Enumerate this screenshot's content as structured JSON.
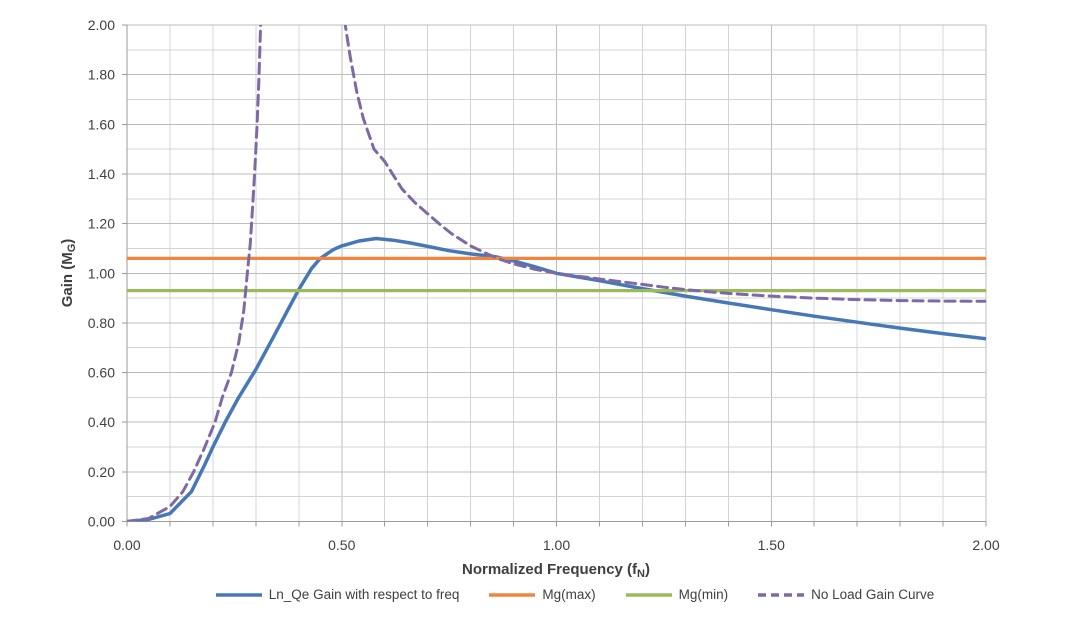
{
  "chart_data": {
    "type": "line",
    "xlabel": {
      "pre": "Normalized Frequency (f",
      "sub": "N",
      "post": ")"
    },
    "ylabel": {
      "pre": "Gain (M",
      "sub": "G",
      "post": ")"
    },
    "x_range": [
      0.0,
      2.0
    ],
    "y_range": [
      0.0,
      2.0
    ],
    "x_minor_step": 0.1,
    "y_minor_step": 0.1,
    "x_major_step": 0.5,
    "y_major_step": 0.2,
    "x_tick_labels": [
      "0.00",
      "0.50",
      "1.00",
      "1.50",
      "2.00"
    ],
    "y_tick_labels": [
      "0.00",
      "0.20",
      "0.40",
      "0.60",
      "0.80",
      "1.00",
      "1.20",
      "1.40",
      "1.60",
      "1.80",
      "2.00"
    ],
    "grid": true,
    "legend_position": "bottom",
    "series": [
      {
        "name": "Ln_Qe Gain with respect to freq",
        "color": "#4678B8",
        "dash": null,
        "width": 3.5,
        "segments": [
          [
            [
              0.0,
              0.0
            ],
            [
              0.05,
              0.008
            ],
            [
              0.1,
              0.032
            ],
            [
              0.15,
              0.12
            ],
            [
              0.18,
              0.225
            ],
            [
              0.2,
              0.3
            ],
            [
              0.23,
              0.405
            ],
            [
              0.26,
              0.5
            ],
            [
              0.3,
              0.612
            ],
            [
              0.34,
              0.74
            ],
            [
              0.38,
              0.87
            ],
            [
              0.4,
              0.935
            ],
            [
              0.43,
              1.02
            ],
            [
              0.45,
              1.06
            ],
            [
              0.48,
              1.095
            ],
            [
              0.5,
              1.11
            ],
            [
              0.54,
              1.13
            ],
            [
              0.58,
              1.14
            ],
            [
              0.62,
              1.133
            ],
            [
              0.66,
              1.122
            ],
            [
              0.7,
              1.108
            ],
            [
              0.75,
              1.091
            ],
            [
              0.8,
              1.078
            ],
            [
              0.86,
              1.066
            ],
            [
              0.9,
              1.05
            ],
            [
              0.95,
              1.026
            ],
            [
              1.0,
              1.0
            ],
            [
              1.05,
              0.985
            ],
            [
              1.1,
              0.97
            ],
            [
              1.15,
              0.954
            ],
            [
              1.2,
              0.938
            ],
            [
              1.3,
              0.908
            ],
            [
              1.4,
              0.88
            ],
            [
              1.5,
              0.853
            ],
            [
              1.6,
              0.827
            ],
            [
              1.7,
              0.803
            ],
            [
              1.8,
              0.779
            ],
            [
              1.9,
              0.757
            ],
            [
              2.0,
              0.736
            ]
          ]
        ]
      },
      {
        "name": "Mg(max)",
        "color": "#F0863D",
        "dash": null,
        "width": 3.2,
        "segments": [
          [
            [
              0.0,
              1.06
            ],
            [
              2.0,
              1.06
            ]
          ]
        ]
      },
      {
        "name": "Mg(min)",
        "color": "#9BBB59",
        "dash": null,
        "width": 3.2,
        "segments": [
          [
            [
              0.0,
              0.93
            ],
            [
              2.0,
              0.93
            ]
          ]
        ]
      },
      {
        "name": "No Load Gain Curve",
        "color": "#7E69A5",
        "dash": "10 6",
        "width": 3,
        "segments": [
          [
            [
              0.0,
              0.0
            ],
            [
              0.05,
              0.012
            ],
            [
              0.1,
              0.06
            ],
            [
              0.13,
              0.12
            ],
            [
              0.155,
              0.2
            ],
            [
              0.18,
              0.295
            ],
            [
              0.205,
              0.4
            ],
            [
              0.222,
              0.5
            ],
            [
              0.243,
              0.6
            ],
            [
              0.26,
              0.72
            ],
            [
              0.272,
              0.85
            ],
            [
              0.28,
              1.0
            ],
            [
              0.287,
              1.12
            ],
            [
              0.293,
              1.28
            ],
            [
              0.298,
              1.43
            ],
            [
              0.303,
              1.6
            ],
            [
              0.307,
              1.78
            ],
            [
              0.311,
              2.0
            ],
            [
              0.315,
              2.15
            ]
          ],
          [
            [
              0.497,
              2.15
            ],
            [
              0.505,
              2.04
            ],
            [
              0.51,
              1.98
            ],
            [
              0.52,
              1.87
            ],
            [
              0.535,
              1.73
            ],
            [
              0.55,
              1.625
            ],
            [
              0.575,
              1.5
            ],
            [
              0.6,
              1.45
            ],
            [
              0.64,
              1.34
            ],
            [
              0.67,
              1.285
            ],
            [
              0.7,
              1.24
            ],
            [
              0.73,
              1.195
            ],
            [
              0.755,
              1.16
            ],
            [
              0.8,
              1.11
            ],
            [
              0.84,
              1.077
            ],
            [
              0.87,
              1.055
            ],
            [
              0.9,
              1.038
            ],
            [
              0.95,
              1.016
            ],
            [
              1.0,
              1.0
            ],
            [
              1.05,
              0.988
            ],
            [
              1.1,
              0.977
            ],
            [
              1.15,
              0.966
            ],
            [
              1.2,
              0.955
            ],
            [
              1.25,
              0.944
            ],
            [
              1.3,
              0.934
            ],
            [
              1.35,
              0.926
            ],
            [
              1.4,
              0.919
            ],
            [
              1.45,
              0.913
            ],
            [
              1.5,
              0.908
            ],
            [
              1.6,
              0.9
            ],
            [
              1.7,
              0.894
            ],
            [
              1.8,
              0.89
            ],
            [
              1.9,
              0.888
            ],
            [
              2.0,
              0.887
            ]
          ]
        ]
      }
    ]
  },
  "colors": {
    "background": "#ffffff",
    "grid_minor": "#d4d4d4",
    "grid_major": "#bcbcbc",
    "axis": "#9b9b9b",
    "text": "#3f3f3f"
  }
}
